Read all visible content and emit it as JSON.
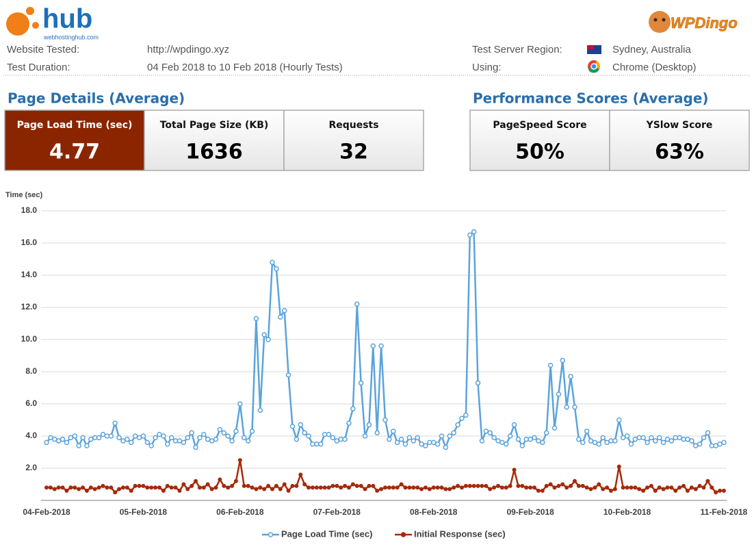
{
  "header": {
    "brand": "hub",
    "brand_sub": "webhostinghub.com",
    "partner": "WPDingo"
  },
  "info": [
    {
      "label": "Website Tested:",
      "value": "http://wpdingo.xyz"
    },
    {
      "label": "Test Duration:",
      "value": "04 Feb 2018 to 10 Feb 2018 (Hourly Tests)"
    },
    {
      "label": "Test Server Region:",
      "value": "Sydney, Australia"
    },
    {
      "label": "Using:",
      "value": "Chrome (Desktop)"
    }
  ],
  "page_details": {
    "title": "Page Details (Average)",
    "cards": [
      {
        "label": "Page Load Time (sec)",
        "value": "4.77"
      },
      {
        "label": "Total Page Size (KB)",
        "value": "1636"
      },
      {
        "label": "Requests",
        "value": "32"
      }
    ]
  },
  "performance": {
    "title": "Performance Scores (Average)",
    "cards": [
      {
        "label": "PageSpeed Score",
        "value": "50%"
      },
      {
        "label": "YSlow Score",
        "value": "63%"
      }
    ]
  },
  "chart_data": {
    "type": "line",
    "y_label": "Time (sec)",
    "categories": [
      "04-Feb-2018",
      null,
      null,
      null,
      null,
      null,
      null,
      null,
      null,
      null,
      null,
      null,
      null,
      null,
      null,
      null,
      null,
      null,
      null,
      null,
      null,
      null,
      null,
      null,
      "05-Feb-2018",
      null,
      null,
      null,
      null,
      null,
      null,
      null,
      null,
      null,
      null,
      null,
      null,
      null,
      null,
      null,
      null,
      null,
      null,
      null,
      null,
      null,
      null,
      null,
      "06-Feb-2018",
      null,
      null,
      null,
      null,
      null,
      null,
      null,
      null,
      null,
      null,
      null,
      null,
      null,
      null,
      null,
      null,
      null,
      null,
      null,
      null,
      null,
      null,
      null,
      "07-Feb-2018",
      null,
      null,
      null,
      null,
      null,
      null,
      null,
      null,
      null,
      null,
      null,
      null,
      null,
      null,
      null,
      null,
      null,
      null,
      null,
      null,
      null,
      null,
      null,
      "08-Feb-2018",
      null,
      null,
      null,
      null,
      null,
      null,
      null,
      null,
      null,
      null,
      null,
      null,
      null,
      null,
      null,
      null,
      null,
      null,
      null,
      null,
      null,
      null,
      null,
      "09-Feb-2018",
      null,
      null,
      null,
      null,
      null,
      null,
      null,
      null,
      null,
      null,
      null,
      null,
      null,
      null,
      null,
      null,
      null,
      null,
      null,
      null,
      null,
      null,
      null,
      "10-Feb-2018",
      null,
      null,
      null,
      null,
      null,
      null,
      null,
      null,
      null,
      null,
      null,
      null,
      null,
      null,
      null,
      null,
      null,
      null,
      null,
      null,
      null,
      null,
      null,
      "11-Feb-2018"
    ],
    "series": [
      {
        "name": "Page Load Time (sec)",
        "color": "#5ba3dc",
        "marker": "open",
        "values": [
          3.6,
          3.9,
          3.8,
          3.7,
          3.8,
          3.6,
          3.9,
          4.0,
          3.4,
          3.9,
          3.4,
          3.8,
          3.9,
          3.9,
          4.1,
          4.0,
          4.0,
          4.8,
          3.9,
          3.7,
          3.8,
          3.6,
          4.0,
          3.9,
          4.0,
          3.6,
          3.4,
          3.9,
          4.1,
          4.0,
          3.5,
          3.9,
          3.7,
          3.7,
          3.6,
          3.9,
          4.2,
          3.3,
          3.9,
          4.1,
          3.8,
          3.7,
          3.8,
          4.4,
          4.2,
          4.0,
          3.7,
          4.3,
          6.0,
          3.9,
          3.7,
          4.3,
          11.3,
          5.6,
          10.3,
          10.0,
          14.8,
          14.4,
          11.4,
          11.8,
          7.8,
          4.6,
          3.8,
          4.7,
          4.2,
          4.0,
          3.5,
          3.5,
          3.5,
          4.1,
          4.1,
          3.9,
          3.7,
          3.8,
          3.8,
          4.8,
          5.7,
          12.2,
          7.3,
          4.0,
          4.7,
          9.6,
          4.2,
          9.6,
          5.0,
          3.8,
          4.3,
          3.6,
          3.8,
          3.5,
          3.9,
          3.7,
          3.9,
          3.5,
          3.4,
          3.6,
          3.6,
          3.5,
          4.0,
          3.3,
          4.0,
          4.2,
          4.7,
          5.1,
          5.3,
          16.5,
          16.7,
          7.3,
          3.7,
          4.3,
          4.2,
          3.9,
          3.7,
          3.6,
          3.5,
          4.0,
          4.7,
          3.8,
          3.4,
          3.8,
          3.8,
          3.9,
          3.7,
          3.6,
          4.2,
          8.4,
          4.5,
          6.6,
          8.7,
          5.8,
          7.7,
          5.8,
          3.8,
          3.6,
          4.3,
          3.7,
          3.6,
          3.5,
          3.9,
          3.6,
          3.7,
          3.7,
          5.0,
          3.9,
          4.0,
          3.5,
          3.8,
          3.9,
          3.9,
          3.6,
          3.9,
          3.7,
          3.9,
          3.6,
          3.8,
          3.7,
          3.9,
          3.9,
          3.8,
          3.8,
          3.7,
          3.4,
          3.5,
          3.9,
          4.2,
          3.4,
          3.4,
          3.5,
          3.6
        ]
      },
      {
        "name": "Initial Response (sec)",
        "color": "#a52a0a",
        "marker": "filled",
        "values": [
          0.8,
          0.8,
          0.7,
          0.8,
          0.8,
          0.6,
          0.8,
          0.8,
          0.7,
          0.8,
          0.6,
          0.8,
          0.7,
          0.8,
          0.9,
          0.8,
          0.8,
          0.5,
          0.7,
          0.8,
          0.8,
          0.6,
          0.9,
          0.9,
          0.9,
          0.8,
          0.8,
          0.8,
          0.8,
          0.6,
          0.9,
          0.8,
          0.8,
          0.6,
          1.0,
          0.7,
          0.9,
          1.2,
          0.8,
          0.8,
          1.0,
          0.7,
          0.8,
          1.3,
          0.9,
          0.8,
          0.9,
          1.2,
          2.5,
          0.9,
          0.9,
          0.8,
          0.7,
          0.8,
          0.7,
          0.9,
          0.7,
          0.9,
          0.7,
          1.0,
          0.6,
          0.9,
          0.9,
          1.6,
          1.0,
          0.8,
          0.8,
          0.8,
          0.8,
          0.8,
          0.8,
          0.9,
          0.9,
          0.8,
          0.9,
          0.8,
          1.0,
          0.9,
          0.9,
          0.7,
          0.9,
          0.9,
          0.6,
          0.7,
          0.8,
          0.8,
          0.8,
          0.8,
          1.0,
          0.8,
          0.8,
          0.8,
          0.8,
          0.7,
          0.8,
          0.7,
          0.8,
          0.8,
          0.8,
          0.7,
          0.7,
          0.8,
          0.9,
          0.8,
          0.9,
          0.9,
          0.9,
          0.9,
          0.9,
          0.9,
          0.7,
          0.8,
          0.9,
          0.8,
          0.8,
          0.9,
          1.9,
          0.9,
          0.9,
          0.8,
          0.8,
          0.8,
          0.6,
          0.6,
          0.9,
          1.0,
          0.8,
          0.9,
          1.0,
          0.8,
          0.9,
          1.2,
          0.9,
          0.9,
          0.8,
          0.7,
          0.8,
          1.0,
          0.7,
          0.8,
          0.6,
          0.7,
          2.1,
          0.8,
          0.8,
          0.8,
          0.8,
          0.7,
          0.6,
          0.8,
          0.9,
          0.6,
          0.8,
          0.7,
          0.8,
          0.8,
          0.6,
          0.8,
          0.9,
          0.6,
          0.8,
          0.7,
          0.9,
          0.8,
          1.2,
          0.8,
          0.5,
          0.6,
          0.6
        ]
      }
    ],
    "ylim": [
      0,
      18
    ],
    "yticks": [
      {
        "value": 2,
        "label": "2.0"
      },
      {
        "value": 4,
        "label": "4.0"
      },
      {
        "value": 6,
        "label": "6.0"
      },
      {
        "value": 8,
        "label": "8.0"
      },
      {
        "value": 10,
        "label": "10.0"
      },
      {
        "value": 12,
        "label": "12.0"
      },
      {
        "value": 14,
        "label": "14.0"
      },
      {
        "value": 16,
        "label": "16.0"
      },
      {
        "value": 18,
        "label": "18.0"
      }
    ],
    "grid": true,
    "legend": "bottom"
  }
}
